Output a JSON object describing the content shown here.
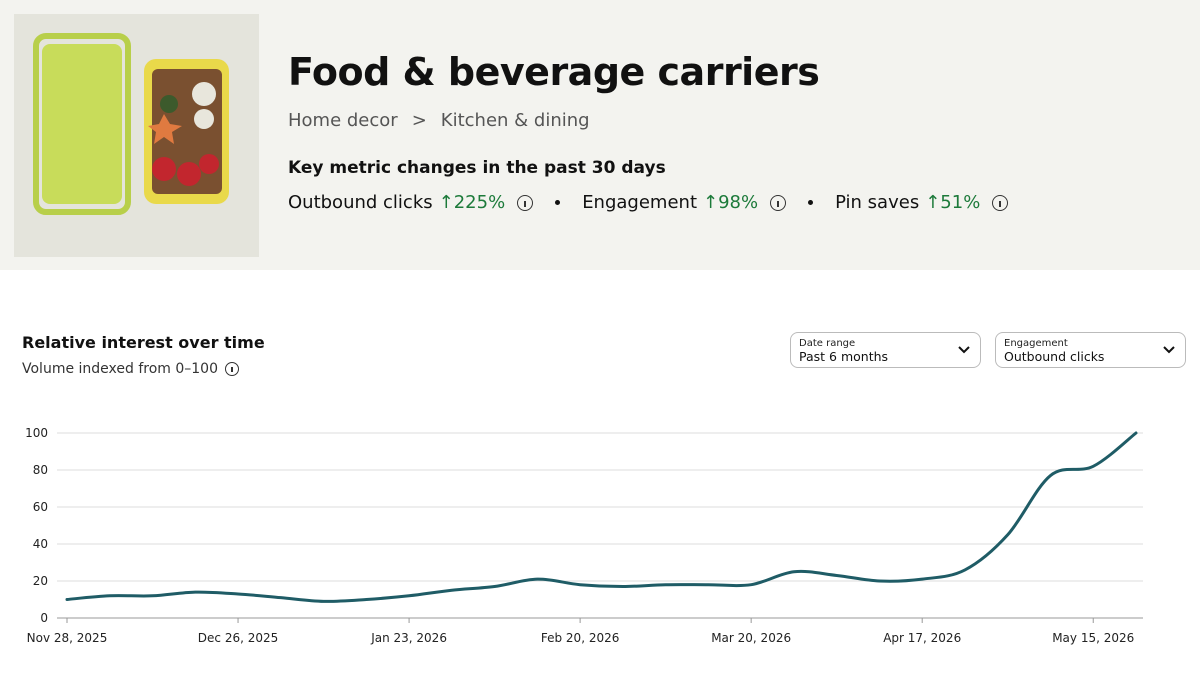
{
  "header": {
    "title": "Food & beverage carriers",
    "breadcrumb": {
      "items": [
        "Home decor",
        "Kitchen & dining"
      ],
      "separator": ">"
    },
    "metrics_heading": "Key metric changes in the past 30 days",
    "metrics": [
      {
        "label": "Outbound clicks",
        "change": "↑225%"
      },
      {
        "label": "Engagement",
        "change": "↑98%"
      },
      {
        "label": "Pin saves",
        "change": "↑51%"
      }
    ]
  },
  "controls": [
    {
      "label": "Date range",
      "value": "Past 6 months"
    },
    {
      "label": "Engagement",
      "value": "Outbound clicks"
    }
  ],
  "chart_data": {
    "type": "line",
    "title": "Relative interest over time",
    "subtitle": "Volume indexed from 0–100",
    "x": [
      "2025-11-28",
      "2025-12-05",
      "2025-12-12",
      "2025-12-19",
      "2025-12-26",
      "2026-01-02",
      "2026-01-09",
      "2026-01-16",
      "2026-01-23",
      "2026-01-30",
      "2026-02-06",
      "2026-02-13",
      "2026-02-20",
      "2026-02-27",
      "2026-03-06",
      "2026-03-13",
      "2026-03-20",
      "2026-03-27",
      "2026-04-03",
      "2026-04-10",
      "2026-04-17",
      "2026-04-24",
      "2026-05-01",
      "2026-05-08",
      "2026-05-15",
      "2026-05-22"
    ],
    "series": [
      {
        "name": "Relative interest",
        "color": "#1f5c66",
        "values": [
          10,
          12,
          12,
          14,
          13,
          11,
          9,
          10,
          12,
          15,
          17,
          21,
          18,
          17,
          18,
          18,
          18,
          25,
          23,
          20,
          21,
          26,
          45,
          77,
          82,
          100
        ]
      }
    ],
    "xlim": [
      "2025-11-28",
      "2026-05-22"
    ],
    "xticks": [
      {
        "value": "2025-11-28",
        "label": "Nov 28, 2025"
      },
      {
        "value": "2025-12-26",
        "label": "Dec 26, 2025"
      },
      {
        "value": "2026-01-23",
        "label": "Jan 23, 2026"
      },
      {
        "value": "2026-02-20",
        "label": "Feb 20, 2026"
      },
      {
        "value": "2026-03-20",
        "label": "Mar 20, 2026"
      },
      {
        "value": "2026-04-17",
        "label": "Apr 17, 2026"
      },
      {
        "value": "2026-05-15",
        "label": "May 15, 2026"
      }
    ],
    "ylim": [
      0,
      100
    ],
    "yticks": [
      0,
      20,
      40,
      60,
      80,
      100
    ],
    "grid": true
  }
}
